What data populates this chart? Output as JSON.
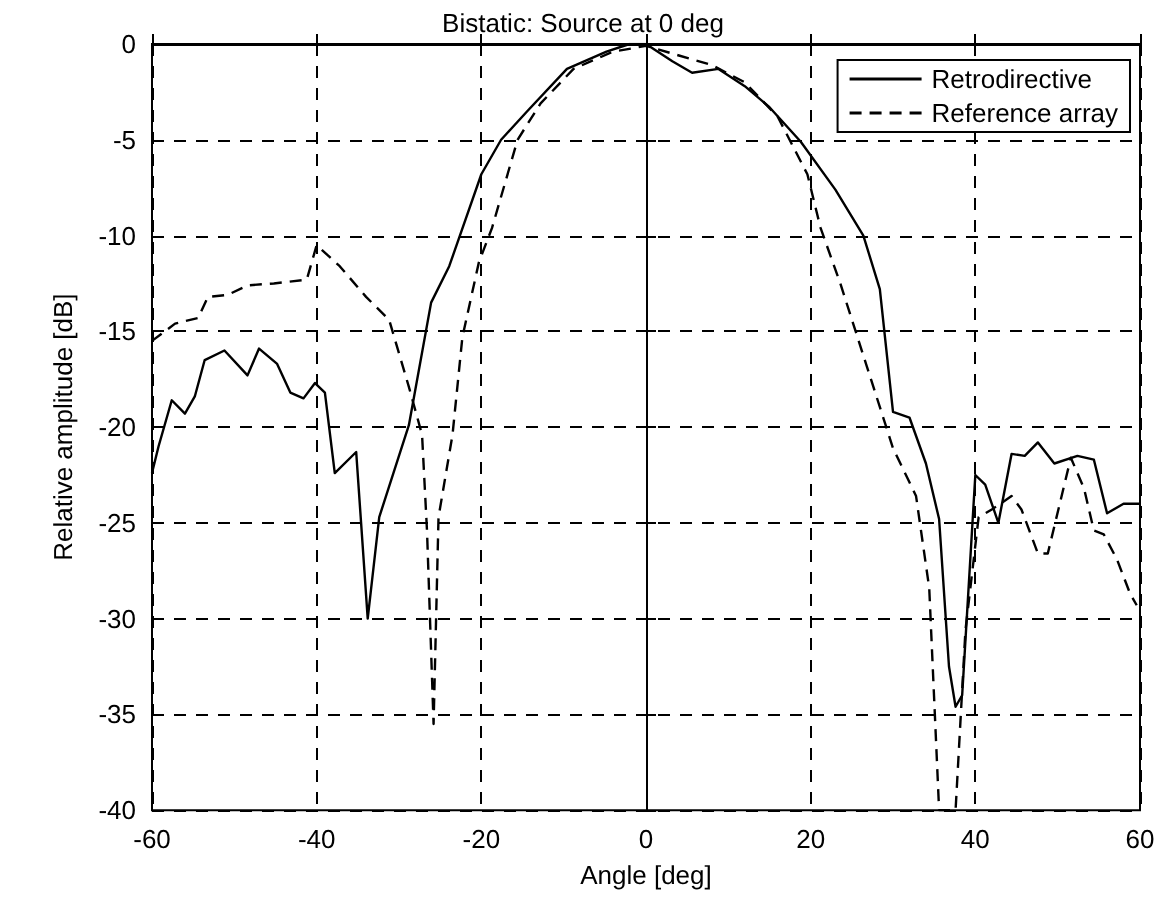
{
  "chart_data": {
    "type": "line",
    "title": "Bistatic: Source at 0 deg",
    "xlabel": "Angle [deg]",
    "ylabel": "Relative amplitude [dB]",
    "xlim": [
      -60,
      60
    ],
    "xticks": [
      -60,
      -40,
      -20,
      0,
      20,
      40,
      60
    ],
    "ylim": [
      -40,
      0
    ],
    "yticks": [
      -40,
      -35,
      -30,
      -25,
      -20,
      -15,
      -10,
      -5,
      0
    ],
    "grid": true,
    "legend": "top right",
    "marker": "none",
    "series": [
      {
        "name": "Retrodirective",
        "color": "#000000",
        "line_style": "solid",
        "x": [
          -60,
          -59.2,
          -57.6,
          -56,
          -54.8,
          -53.6,
          -51.2,
          -48.4,
          -47,
          -44.8,
          -43.2,
          -41.6,
          -40.2,
          -39,
          -37.8,
          -35.2,
          -33.8,
          -32.4,
          -28.8,
          -26.1,
          -23.9,
          -20,
          -17.6,
          -14.4,
          -9.6,
          -4.8,
          -2,
          0,
          3.2,
          5.6,
          8.8,
          12,
          15,
          18.8,
          23,
          26.4,
          28.4,
          30,
          32,
          34,
          35.6,
          36.8,
          37.6,
          38.4,
          40,
          41.2,
          42.8,
          44.4,
          46,
          47.6,
          49.6,
          52.4,
          54.4,
          56,
          58,
          60
        ],
        "values": [
          -22.4,
          -21,
          -18.6,
          -19.3,
          -18.4,
          -16.5,
          -16,
          -17.3,
          -15.9,
          -16.7,
          -18.2,
          -18.5,
          -17.7,
          -18.2,
          -22.4,
          -21.3,
          -30,
          -24.7,
          -19.9,
          -13.5,
          -11.6,
          -6.8,
          -5,
          -3.5,
          -1.3,
          -0.4,
          0,
          0,
          -0.9,
          -1.5,
          -1.3,
          -2.2,
          -3.3,
          -5.1,
          -7.6,
          -10,
          -12.8,
          -19.2,
          -19.5,
          -21.9,
          -24.8,
          -32.5,
          -34.6,
          -34,
          -22.5,
          -23,
          -25,
          -21.4,
          -21.5,
          -20.8,
          -21.9,
          -21.5,
          -21.7,
          -24.5,
          -24,
          -24
        ]
      },
      {
        "name": "Reference array",
        "color": "#000000",
        "line_style": "dashed",
        "x": [
          -60,
          -57.2,
          -54.4,
          -53.2,
          -50.8,
          -48.4,
          -45.2,
          -41.2,
          -40,
          -37.2,
          -34,
          -31.2,
          -28.8,
          -27.2,
          -26.6,
          -25.8,
          -25.2,
          -23.5,
          -22.3,
          -20.3,
          -18.7,
          -15.6,
          -12.8,
          -8.8,
          -4,
          0,
          4,
          8,
          12,
          16,
          19.6,
          21.2,
          23.6,
          26.8,
          30,
          32.8,
          34.4,
          35.6,
          37.6,
          38.8,
          40.4,
          42,
          44.4,
          45.6,
          47.6,
          48.8,
          51.6,
          53.2,
          54.4,
          55.6,
          57.2,
          58.8,
          59.6
        ],
        "values": [
          -15.5,
          -14.6,
          -14.3,
          -13.2,
          -13.1,
          -12.6,
          -12.5,
          -12.3,
          -10.5,
          -11.6,
          -13.2,
          -14.4,
          -17.9,
          -20.4,
          -25.4,
          -35.5,
          -24.7,
          -20.4,
          -15.3,
          -11.4,
          -9.6,
          -5,
          -3.1,
          -1.3,
          -0.4,
          -0.1,
          -0.6,
          -1.1,
          -2,
          -3.8,
          -6.8,
          -9.6,
          -12.5,
          -16.8,
          -21.1,
          -23.6,
          -28.4,
          -40,
          -40,
          -30.6,
          -24.7,
          -24.3,
          -23.6,
          -24.3,
          -26.6,
          -26.6,
          -21.6,
          -23.2,
          -25.4,
          -25.6,
          -26.9,
          -28.7,
          -29.3
        ]
      }
    ]
  }
}
